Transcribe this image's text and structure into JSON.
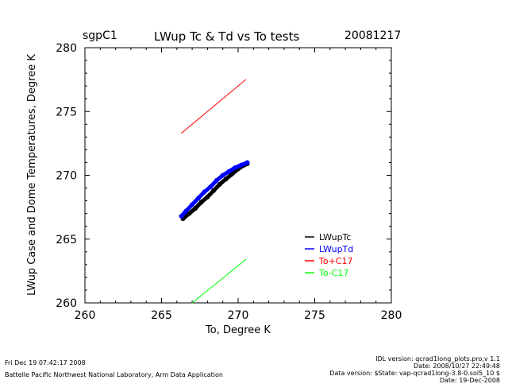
{
  "header": {
    "site": "sgpC1",
    "title": "LWup Tc & Td vs To tests",
    "date": "20081217"
  },
  "chart_data": {
    "type": "scatter",
    "title": "LWup Tc & Td vs To tests",
    "xlabel": "To, Degree K",
    "ylabel": "LWup Case and Dome Temperatures, Degree K",
    "xlim": [
      260,
      280
    ],
    "ylim": [
      260,
      280
    ],
    "xticks": [
      260,
      265,
      270,
      275,
      280
    ],
    "yticks": [
      260,
      265,
      270,
      275,
      280
    ],
    "legend_position": "bottom-right",
    "series": [
      {
        "name": "LWupTc",
        "color": "#000000",
        "style": "thick",
        "x": [
          266.4,
          266.8,
          267.2,
          267.6,
          268.0,
          268.4,
          268.8,
          269.2,
          269.6,
          270.0,
          270.4,
          270.6
        ],
        "y": [
          266.6,
          267.0,
          267.4,
          267.9,
          268.3,
          268.8,
          269.3,
          269.7,
          270.1,
          270.5,
          270.8,
          270.9
        ]
      },
      {
        "name": "LWupTd",
        "color": "#0000ff",
        "style": "thick",
        "x": [
          266.3,
          266.6,
          267.0,
          267.4,
          267.8,
          268.2,
          268.6,
          269.0,
          269.4,
          269.8,
          270.2,
          270.6
        ],
        "y": [
          266.8,
          267.2,
          267.7,
          268.2,
          268.7,
          269.1,
          269.6,
          270.0,
          270.3,
          270.6,
          270.8,
          271.0
        ]
      },
      {
        "name": "To+C17",
        "color": "#ff0000",
        "style": "thin",
        "x": [
          266.3,
          270.5
        ],
        "y": [
          273.3,
          277.5
        ]
      },
      {
        "name": "To-C17",
        "color": "#00ff00",
        "style": "thin",
        "x": [
          267.0,
          270.5
        ],
        "y": [
          260.0,
          263.4
        ]
      }
    ]
  },
  "footer": {
    "left_line1": "Fri Dec 19 07:42:17 2008",
    "left_line2": "Battelle Pacific Northwest National Laboratory, Arm Data Application",
    "right_line1": "IDL version: qcrad1long_plots.pro,v 1.1",
    "right_line2": "Date: 2008/10/27 22:49:48",
    "right_line3": "Data version: $State: vap-qcrad1long-3.8-0.sol5_10 $",
    "right_line4": "Date: 19-Dec-2008"
  }
}
